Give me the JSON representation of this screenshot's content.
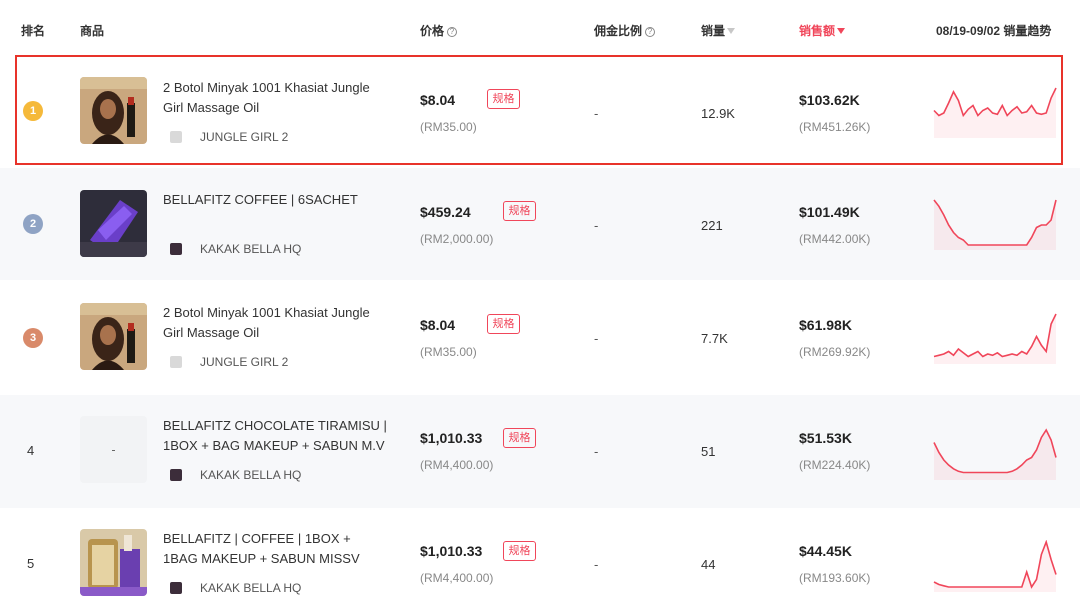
{
  "header": {
    "rank": "排名",
    "product": "商品",
    "price": "价格",
    "commission": "佣金比例",
    "sales": "销量",
    "revenue": "销售额",
    "trend": "08/19-09/02 销量趋势"
  },
  "colors": {
    "accent": "#f0465a",
    "highlight_border": "#e8332a",
    "gold_medal": "#f5b93a",
    "silver_medal": "#8fa3c4",
    "bronze_medal": "#d98a6a"
  },
  "rows": [
    {
      "rank": "1",
      "medal": "gold",
      "name": "2 Botol Minyak 1001 Khasiat Jungle Girl Massage Oil",
      "shop": "JUNGLE GIRL 2",
      "price": "$8.04",
      "price_local": "(RM35.00)",
      "spec": "规格",
      "commission": "-",
      "sales": "12.9K",
      "revenue": "$103.62K",
      "revenue_local": "(RM451.26K)",
      "trend": [
        18,
        22,
        20,
        12,
        3,
        10,
        22,
        17,
        14,
        22,
        18,
        16,
        20,
        21,
        14,
        22,
        18,
        15,
        20,
        19,
        14,
        20,
        21,
        20,
        8,
        0
      ],
      "highlighted": true
    },
    {
      "rank": "2",
      "medal": "silver",
      "name": "BELLAFITZ COFFEE | 6SACHET",
      "shop": "KAKAK BELLA HQ",
      "price": "$459.24",
      "price_local": "(RM2,000.00)",
      "spec": "规格",
      "commission": "-",
      "sales": "221",
      "revenue": "$101.49K",
      "revenue_local": "(RM442.00K)",
      "trend": [
        0,
        5,
        12,
        20,
        26,
        30,
        32,
        36,
        36,
        36,
        36,
        36,
        36,
        36,
        36,
        36,
        36,
        36,
        36,
        36,
        30,
        22,
        20,
        20,
        16,
        0
      ]
    },
    {
      "rank": "3",
      "medal": "bronze",
      "name": "2 Botol Minyak 1001 Khasiat Jungle Girl Massage Oil",
      "shop": "JUNGLE GIRL 2",
      "price": "$8.04",
      "price_local": "(RM35.00)",
      "spec": "规格",
      "commission": "-",
      "sales": "7.7K",
      "revenue": "$61.98K",
      "revenue_local": "(RM269.92K)",
      "trend": [
        34,
        33,
        32,
        30,
        33,
        28,
        31,
        34,
        32,
        30,
        34,
        32,
        33,
        31,
        34,
        33,
        32,
        33,
        30,
        32,
        26,
        18,
        25,
        30,
        8,
        0
      ]
    },
    {
      "rank": "4",
      "medal": "",
      "name": "BELLAFITZ CHOCOLATE TIRAMISU | 1BOX + BAG MAKEUP + SABUN M.V",
      "shop": "KAKAK BELLA HQ",
      "price": "$1,010.33",
      "price_local": "(RM4,400.00)",
      "spec": "规格",
      "commission": "-",
      "sales": "51",
      "revenue": "$51.53K",
      "revenue_local": "(RM224.40K)",
      "trend": [
        10,
        18,
        24,
        28,
        31,
        33,
        34,
        34,
        34,
        34,
        34,
        34,
        34,
        34,
        34,
        34,
        33,
        31,
        28,
        24,
        22,
        16,
        6,
        0,
        8,
        22
      ]
    },
    {
      "rank": "5",
      "medal": "",
      "name": "BELLAFITZ | COFFEE | 1BOX + 1BAG MAKEUP + SABUN MISSV",
      "shop": "KAKAK BELLA HQ",
      "price": "$1,010.33",
      "price_local": "(RM4,400.00)",
      "spec": "规格",
      "commission": "-",
      "sales": "44",
      "revenue": "$44.45K",
      "revenue_local": "(RM193.60K)",
      "trend": [
        32,
        34,
        35,
        36,
        36,
        36,
        36,
        36,
        36,
        36,
        36,
        36,
        36,
        36,
        36,
        36,
        36,
        36,
        36,
        24,
        36,
        30,
        10,
        0,
        14,
        26
      ]
    }
  ]
}
